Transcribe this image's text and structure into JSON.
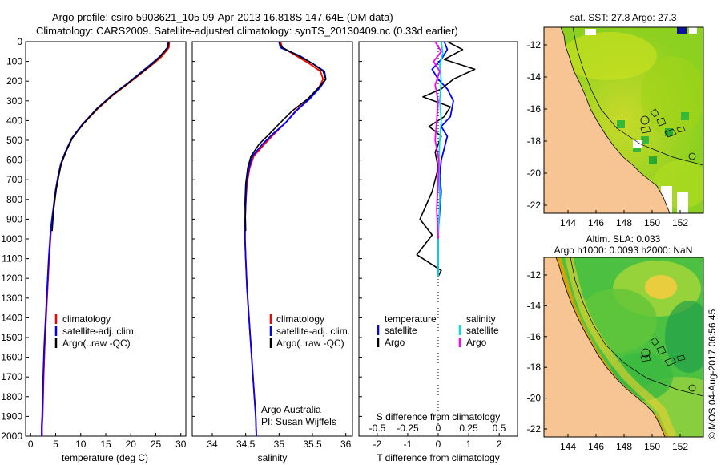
{
  "header": {
    "line1": "Argo profile: csiro 5903621_105 09-Apr-2013 16.818S 147.64E (DM data)",
    "line2": "Climatology: CARS2009. Satellite-adjusted climatology: synTS_20130409.nc (0.33d earlier)"
  },
  "colors": {
    "red": "#ff0000",
    "blue": "#0000ff",
    "black": "#000000",
    "cyan": "#00e0e0",
    "magenta": "#ff00ff",
    "land": "#f7c593",
    "ocean_green": "#38b838"
  },
  "chart_data": [
    {
      "id": "temperature",
      "type": "line",
      "xlabel": "temperature (deg C)",
      "ylabel": "",
      "xlim": [
        -1,
        31
      ],
      "ylim": [
        0,
        2000
      ],
      "y_reversed": true,
      "xticks": [
        0,
        5,
        10,
        15,
        20,
        25,
        30
      ],
      "yticks": [
        0,
        100,
        200,
        300,
        400,
        500,
        600,
        700,
        800,
        900,
        1000,
        1100,
        1200,
        1300,
        1400,
        1500,
        1600,
        1700,
        1800,
        1900,
        2000
      ],
      "series": [
        {
          "name": "climatology",
          "color": "red",
          "x": [
            27.7,
            27.6,
            26.2,
            24.6,
            22.1,
            19.6,
            16.5,
            13.4,
            10.4,
            8.3,
            7.0,
            6.1,
            5.6,
            5.1,
            4.6,
            4.1,
            3.7,
            3.4,
            3.1,
            2.8,
            2.6,
            2.5,
            2.4,
            2.3,
            2.3,
            2.3
          ],
          "y": [
            0,
            30,
            75,
            110,
            160,
            210,
            270,
            340,
            420,
            490,
            560,
            620,
            680,
            750,
            850,
            950,
            1100,
            1250,
            1400,
            1550,
            1700,
            1800,
            1900,
            1950,
            1990,
            2000
          ]
        },
        {
          "name": "satellite-adj. clim.",
          "color": "blue",
          "x": [
            27.5,
            27.3,
            25.8,
            24.2,
            21.8,
            19.4,
            16.3,
            13.2,
            10.3,
            8.2,
            6.9,
            6.0,
            5.5,
            5.0,
            4.5,
            4.0,
            3.6,
            3.3,
            3.0,
            2.7,
            2.5,
            2.4,
            2.3,
            2.2,
            2.2,
            2.2
          ],
          "y": [
            0,
            30,
            75,
            110,
            160,
            210,
            270,
            340,
            420,
            490,
            560,
            620,
            680,
            750,
            850,
            950,
            1100,
            1250,
            1400,
            1550,
            1700,
            1800,
            1900,
            1950,
            1990,
            2000
          ]
        },
        {
          "name": "Argo(..raw -QC)",
          "color": "black",
          "x": [
            27.6,
            27.4,
            25.9,
            24.4,
            22.0,
            19.5,
            16.4,
            13.3,
            10.4,
            8.3,
            7.0,
            6.1,
            5.6,
            5.1,
            4.6,
            4.3
          ],
          "y": [
            5,
            30,
            75,
            110,
            160,
            210,
            270,
            340,
            420,
            490,
            560,
            620,
            680,
            750,
            850,
            960
          ]
        }
      ],
      "legend": [
        "climatology",
        "satellite-adj. clim.",
        "Argo(..raw -QC)"
      ]
    },
    {
      "id": "salinity",
      "type": "line",
      "xlabel": "salinity",
      "xlim": [
        33.7,
        36.1
      ],
      "ylim": [
        0,
        2000
      ],
      "y_reversed": true,
      "xticks": [
        34,
        34.5,
        35,
        35.5,
        36
      ],
      "xtick_labels": [
        "34",
        "34.5",
        "35",
        "35.5",
        "36"
      ],
      "series": [
        {
          "name": "climatology",
          "color": "red",
          "x": [
            35.02,
            35.05,
            35.25,
            35.45,
            35.62,
            35.66,
            35.6,
            35.45,
            35.25,
            35.1,
            34.92,
            34.78,
            34.62,
            34.56,
            34.52,
            34.5,
            34.49,
            34.49,
            34.5,
            34.52,
            34.55,
            34.58,
            34.61,
            34.63,
            34.65,
            34.66
          ],
          "y": [
            0,
            30,
            70,
            110,
            150,
            190,
            230,
            290,
            350,
            410,
            470,
            520,
            580,
            640,
            720,
            820,
            920,
            1000,
            1100,
            1250,
            1400,
            1550,
            1700,
            1800,
            1900,
            2000
          ]
        },
        {
          "name": "satellite-adj. clim.",
          "color": "blue",
          "x": [
            35.0,
            35.02,
            35.3,
            35.5,
            35.68,
            35.7,
            35.62,
            35.46,
            35.26,
            35.1,
            34.9,
            34.75,
            34.6,
            34.55,
            34.51,
            34.5,
            34.49,
            34.49,
            34.5,
            34.52,
            34.55,
            34.58,
            34.61,
            34.63,
            34.65,
            34.66
          ],
          "y": [
            0,
            30,
            70,
            110,
            150,
            190,
            230,
            290,
            350,
            410,
            470,
            520,
            580,
            640,
            720,
            820,
            920,
            1000,
            1100,
            1250,
            1400,
            1550,
            1700,
            1800,
            1900,
            2000
          ]
        },
        {
          "name": "Argo(..raw -QC)",
          "color": "black",
          "x": [
            35.0,
            35.05,
            35.28,
            35.5,
            35.66,
            35.7,
            35.6,
            35.43,
            35.2,
            35.02,
            34.85,
            34.7,
            34.58,
            34.53,
            34.5,
            34.49,
            34.5
          ],
          "y": [
            5,
            30,
            70,
            110,
            150,
            190,
            230,
            290,
            350,
            410,
            470,
            520,
            580,
            640,
            720,
            820,
            960
          ]
        }
      ],
      "legend": [
        "climatology",
        "satellite-adj. clim.",
        "Argo(..raw -QC)"
      ],
      "credit": [
        "Argo Australia",
        "PI: Susan Wijffels"
      ]
    },
    {
      "id": "differences",
      "type": "line",
      "xlabel": "T difference from climatology",
      "xlabel_top": "S difference from climatology",
      "xlim": [
        -2.6,
        2.6
      ],
      "ylim": [
        0,
        2000
      ],
      "y_reversed": true,
      "xticks": [
        -2,
        -1,
        0,
        1,
        2
      ],
      "top_ticks": [
        -0.5,
        -0.25,
        0,
        0.25,
        0.5
      ],
      "top_tick_labels": [
        "-0.5",
        "-0.25",
        "0",
        "0.25",
        "0.5"
      ],
      "series": [
        {
          "name": "temperature satellite",
          "color": "blue",
          "x": [
            0.2,
            0.3,
            0.1,
            -0.2,
            0.0,
            0.3,
            0.5,
            0.4,
            0.1,
            0.3,
            0.2,
            0.1,
            0.05,
            0.1,
            0.05,
            0.0,
            0.0,
            0.0,
            0.0
          ],
          "y": [
            0,
            40,
            90,
            140,
            190,
            240,
            300,
            380,
            430,
            480,
            540,
            600,
            680,
            760,
            860,
            960,
            1060,
            1150,
            1180
          ]
        },
        {
          "name": "temperature Argo",
          "color": "black",
          "x": [
            0.3,
            0.8,
            0.2,
            1.2,
            0.5,
            0.1,
            -0.5,
            0.4,
            0.2,
            -0.3,
            0.1,
            -0.1,
            0.0,
            -0.2,
            -0.6,
            -0.2,
            -0.7,
            0.1,
            0.0
          ],
          "y": [
            0,
            40,
            90,
            140,
            190,
            240,
            280,
            330,
            380,
            430,
            480,
            560,
            640,
            760,
            900,
            980,
            1080,
            1160,
            1190
          ]
        },
        {
          "name": "salinity satellite",
          "color": "cyan",
          "x": [
            0.1,
            0.15,
            0.05,
            0.1,
            0.05,
            0.1,
            0.05,
            0.02,
            0.05,
            0.0,
            0.0,
            0.0
          ],
          "y": [
            0,
            60,
            120,
            200,
            300,
            400,
            500,
            600,
            800,
            1000,
            1100,
            1190
          ]
        },
        {
          "name": "salinity Argo",
          "color": "magenta",
          "x": [
            -0.1,
            0.1,
            -0.15,
            0.05,
            -0.1,
            0.0,
            -0.05,
            -0.1,
            0.02,
            0.0,
            -0.05,
            0.0
          ],
          "y": [
            0,
            50,
            100,
            150,
            220,
            300,
            400,
            500,
            600,
            700,
            850,
            1000
          ]
        }
      ],
      "legend_headers": [
        "temperature",
        "salinity"
      ],
      "legend": [
        "satellite",
        "Argo",
        "satellite",
        "Argo"
      ]
    }
  ],
  "maps": [
    {
      "title": "sat. SST: 27.8 Argo: 27.3",
      "xticks": [
        "144",
        "146",
        "148",
        "150",
        "152"
      ],
      "yticks": [
        "-12",
        "-14",
        "-16",
        "-18",
        "-20",
        "-22"
      ]
    },
    {
      "title_line1": "Altim. SLA: 0.033",
      "title_line2": "Argo h1000: 0.0093 h2000: NaN",
      "xticks": [
        "144",
        "146",
        "148",
        "150",
        "152"
      ],
      "yticks": [
        "-12",
        "-14",
        "-16",
        "-18",
        "-20",
        "-22"
      ]
    }
  ],
  "footer": {
    "stamp": "©IMOS 04-Aug-2017 06:56:45"
  }
}
